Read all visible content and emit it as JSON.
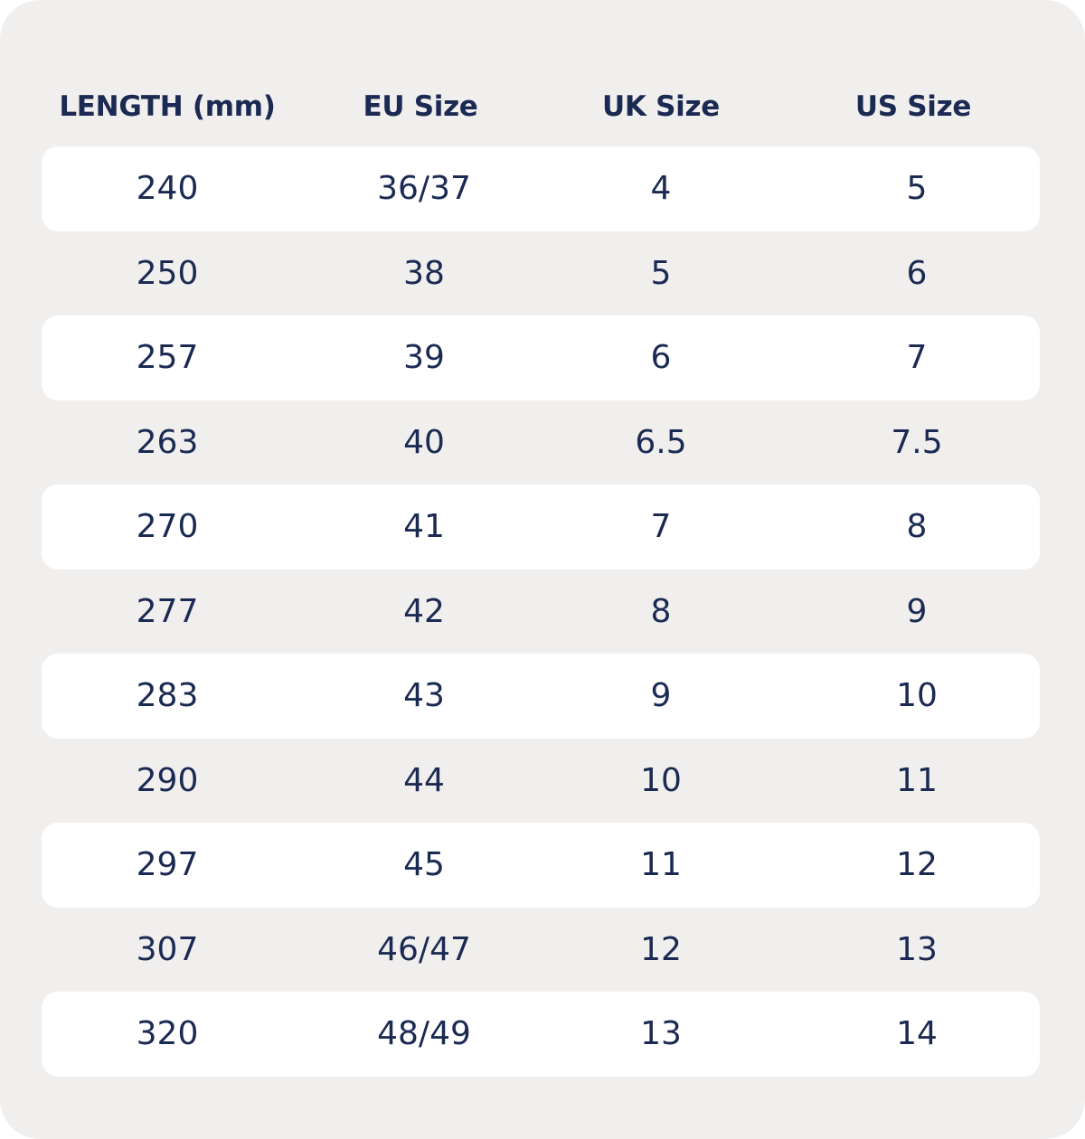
{
  "table": {
    "columns": [
      "LENGTH (mm)",
      "EU Size",
      "UK Size",
      "US Size"
    ],
    "rows": [
      [
        "240",
        "36/37",
        "4",
        "5"
      ],
      [
        "250",
        "38",
        "5",
        "6"
      ],
      [
        "257",
        "39",
        "6",
        "7"
      ],
      [
        "263",
        "40",
        "6.5",
        "7.5"
      ],
      [
        "270",
        "41",
        "7",
        "8"
      ],
      [
        "277",
        "42",
        "8",
        "9"
      ],
      [
        "283",
        "43",
        "9",
        "10"
      ],
      [
        "290",
        "44",
        "10",
        "11"
      ],
      [
        "297",
        "45",
        "11",
        "12"
      ],
      [
        "307",
        "46/47",
        "12",
        "13"
      ],
      [
        "320",
        "48/49",
        "13",
        "14"
      ]
    ]
  },
  "colors": {
    "background": "#f1efee",
    "stripe": "#ffffff",
    "text": "#1b2a52"
  }
}
